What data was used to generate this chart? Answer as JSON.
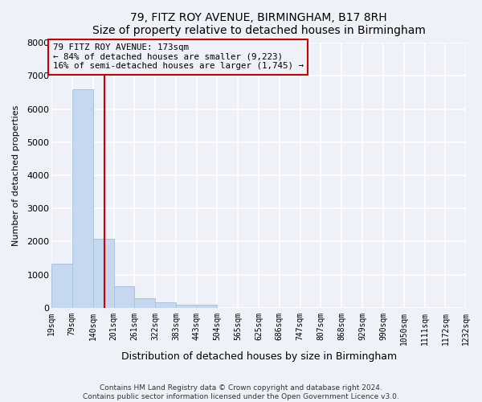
{
  "title": "79, FITZ ROY AVENUE, BIRMINGHAM, B17 8RH",
  "subtitle": "Size of property relative to detached houses in Birmingham",
  "xlabel": "Distribution of detached houses by size in Birmingham",
  "ylabel": "Number of detached properties",
  "bar_color": "#c5d8f0",
  "bar_edge_color": "#a8c4e0",
  "bin_edges": [
    19,
    79,
    140,
    201,
    261,
    322,
    383,
    443,
    504,
    565,
    625,
    686,
    747,
    807,
    868,
    929,
    990,
    1050,
    1111,
    1172,
    1232
  ],
  "bar_heights": [
    1330,
    6600,
    2080,
    640,
    295,
    155,
    80,
    100,
    0,
    0,
    0,
    0,
    0,
    0,
    0,
    0,
    0,
    0,
    0,
    0
  ],
  "tick_labels": [
    "19sqm",
    "79sqm",
    "140sqm",
    "201sqm",
    "261sqm",
    "322sqm",
    "383sqm",
    "443sqm",
    "504sqm",
    "565sqm",
    "625sqm",
    "686sqm",
    "747sqm",
    "807sqm",
    "868sqm",
    "929sqm",
    "990sqm",
    "1050sqm",
    "1111sqm",
    "1172sqm",
    "1232sqm"
  ],
  "property_size": 173,
  "vline_color": "#cc0000",
  "annotation_title": "79 FITZ ROY AVENUE: 173sqm",
  "annotation_line1": "← 84% of detached houses are smaller (9,223)",
  "annotation_line2": "16% of semi-detached houses are larger (1,745) →",
  "box_edge_color": "#cc0000",
  "ylim": [
    0,
    8000
  ],
  "yticks": [
    0,
    1000,
    2000,
    3000,
    4000,
    5000,
    6000,
    7000,
    8000
  ],
  "footer1": "Contains HM Land Registry data © Crown copyright and database right 2024.",
  "footer2": "Contains public sector information licensed under the Open Government Licence v3.0.",
  "bg_color": "#eef2f8",
  "grid_color": "#ffffff"
}
